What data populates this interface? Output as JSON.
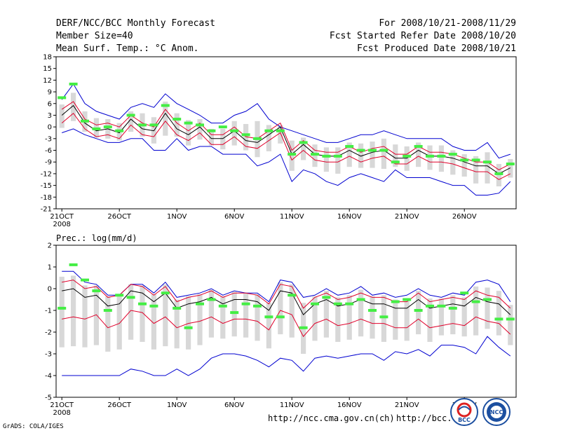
{
  "header": {
    "title": "DERF/NCC/BCC Monthly Forecast",
    "member": "Member Size=40",
    "variable": "Mean Surf. Temp.: °C Anom.",
    "period": "For 2008/10/21-2008/11/29",
    "started": "Fcst Started Refer Date 2008/10/20",
    "produced": "Fcst Produced Date 2008/10/21"
  },
  "footer": {
    "grads": "GrADS: COLA/IGES",
    "url1": "http://ncc.cma.gov.cn(ch)",
    "url2": "http://bcc.c",
    "logo_bcc": "BCC",
    "logo_ncc": "NCC"
  },
  "colors": {
    "ensemble_box": "#d8d8d8",
    "mean": "#000000",
    "spread": "#e0002a",
    "envelope": "#0000d0",
    "observed": "#44ee44"
  },
  "chart_data": [
    {
      "type": "box+line",
      "title": "Mean Surf. Temp.: °C Anom.",
      "x_days": 40,
      "xticks": [
        "21OCT",
        "26OCT",
        "1NOV",
        "6NOV",
        "11NOV",
        "16NOV",
        "21NOV",
        "26NOV"
      ],
      "xtick_days": [
        1,
        6,
        11,
        16,
        21,
        26,
        31,
        36
      ],
      "x_year": "2008",
      "ylim": [
        -21,
        18
      ],
      "yticks": [
        18,
        15,
        12,
        9,
        6,
        3,
        0,
        -3,
        -6,
        -9,
        -12,
        -15,
        -18,
        -21
      ],
      "series": [
        {
          "name": "max",
          "values": [
            -1.5,
            -0.5,
            -2,
            -3,
            -4,
            -4,
            -3,
            -3,
            -6,
            -6,
            -3,
            -6,
            -5,
            -5,
            -7,
            -7,
            -7,
            -10,
            -9,
            -7,
            -14,
            -11,
            -12,
            -14,
            -15,
            -13,
            -12,
            -13,
            -14,
            -11,
            -13,
            -13,
            -13,
            -14,
            -15,
            -15,
            -17.5,
            -17.5,
            -17,
            -14
          ]
        },
        {
          "name": "max_upper",
          "values": [
            7,
            11,
            6,
            4,
            3,
            2,
            5,
            6,
            5,
            8.5,
            6,
            4.5,
            3,
            1,
            1,
            3,
            4,
            6,
            2,
            0,
            -1,
            -2,
            -3,
            -4,
            -4,
            -3,
            -2,
            -2,
            -1,
            -2,
            -3,
            -3,
            -3,
            -3,
            -5,
            -6,
            -6,
            -4,
            -8,
            -7
          ]
        },
        {
          "name": "ensemble_mean",
          "values": [
            3,
            5.5,
            1,
            -1,
            -0.5,
            -1.5,
            2,
            -0.5,
            -1,
            3.5,
            -0.5,
            -2,
            0,
            -3,
            -3,
            -1,
            -3.5,
            -4,
            -2,
            0,
            -7,
            -4.5,
            -7,
            -7.5,
            -7.5,
            -6,
            -7.5,
            -6.5,
            -6,
            -8,
            -8,
            -6,
            -7.5,
            -7.5,
            -8,
            -9,
            -10,
            -10,
            -12,
            -10.5
          ]
        },
        {
          "name": "spread_upper",
          "values": [
            4.5,
            6.5,
            2,
            0.5,
            1,
            0,
            3,
            1,
            0,
            4.5,
            1,
            -1,
            1,
            -2,
            -2,
            0,
            -2.5,
            -3,
            -1,
            1,
            -6,
            -3.5,
            -6,
            -6.5,
            -6.5,
            -5,
            -6.5,
            -5.5,
            -5,
            -7,
            -7,
            -5,
            -6.5,
            -6.5,
            -7,
            -8,
            -9,
            -9,
            -11,
            -9.5
          ]
        },
        {
          "name": "spread_lower",
          "values": [
            1,
            3.5,
            -0.5,
            -2.5,
            -2,
            -3,
            0.5,
            -2,
            -2.5,
            1.5,
            -2,
            -3.5,
            -1.5,
            -4.5,
            -4.5,
            -2.5,
            -5,
            -5.5,
            -3.5,
            -1.5,
            -8.5,
            -6,
            -8.5,
            -9,
            -9,
            -7.5,
            -9,
            -8,
            -7.5,
            -9.5,
            -9.5,
            -7.5,
            -9,
            -9,
            -9.5,
            -10.5,
            -11.5,
            -11.5,
            -13.5,
            -12
          ]
        },
        {
          "name": "observed",
          "values": [
            7.5,
            11,
            1.5,
            -0.5,
            0,
            -1,
            3,
            0.5,
            0.5,
            5.5,
            2,
            1,
            0.5,
            -1,
            0,
            -1,
            -2,
            -3,
            -1,
            -1,
            -7,
            -4,
            -7,
            -7.5,
            -7.5,
            -5,
            -6,
            -6,
            -6,
            -9,
            -7.5,
            -5,
            -7.5,
            -7.5,
            -7,
            -8.5,
            -8.5,
            -9,
            -12,
            -9.5
          ]
        }
      ]
    },
    {
      "type": "box+line",
      "title": "Prec.: log(mm/d)",
      "x_days": 40,
      "xticks": [
        "21OCT",
        "26OCT",
        "1NOV",
        "6NOV",
        "11NOV",
        "16NOV",
        "21NOV",
        "26NOV"
      ],
      "xtick_days": [
        1,
        6,
        11,
        16,
        21,
        26,
        31,
        36
      ],
      "x_year": "2008",
      "ylim": [
        -5,
        2
      ],
      "yticks": [
        2,
        1,
        0,
        -1,
        -2,
        -3,
        -4,
        -5
      ],
      "series": [
        {
          "name": "min_envelope",
          "values": [
            -4,
            -4,
            -4,
            -4,
            -4,
            -4,
            -3.7,
            -3.8,
            -4,
            -4,
            -3.7,
            -4,
            -3.7,
            -3.2,
            -3,
            -3,
            -3.1,
            -3.3,
            -3.6,
            -3.2,
            -3.3,
            -3.8,
            -3.2,
            -3.1,
            -3.2,
            -3.1,
            -3,
            -3,
            -3.3,
            -2.9,
            -3,
            -2.8,
            -3.1,
            -2.6,
            -2.6,
            -2.7,
            -3,
            -2.2,
            -2.7,
            -3.1
          ]
        },
        {
          "name": "max_envelope",
          "values": [
            0.8,
            0.8,
            0.3,
            0.2,
            -0.3,
            -0.3,
            0.2,
            0.2,
            -0.2,
            0.3,
            -0.4,
            -0.3,
            -0.2,
            0,
            -0.3,
            -0.1,
            -0.2,
            -0.2,
            -0.6,
            0.4,
            0.3,
            -0.4,
            -0.3,
            0,
            -0.3,
            -0.2,
            0.1,
            -0.3,
            -0.2,
            -0.4,
            -0.3,
            0,
            -0.3,
            -0.4,
            -0.2,
            -0.3,
            0.3,
            0.4,
            0.2,
            -0.6
          ]
        },
        {
          "name": "ensemble_mean",
          "values": [
            -0.1,
            0,
            -0.4,
            -0.3,
            -0.8,
            -0.7,
            -0.1,
            -0.2,
            -0.6,
            -0.2,
            -0.9,
            -0.7,
            -0.6,
            -0.4,
            -0.7,
            -0.5,
            -0.5,
            -0.6,
            -1,
            -0.1,
            -0.2,
            -1.2,
            -0.7,
            -0.5,
            -0.8,
            -0.7,
            -0.5,
            -0.7,
            -0.7,
            -0.9,
            -0.9,
            -0.5,
            -0.9,
            -0.8,
            -0.7,
            -0.8,
            -0.4,
            -0.6,
            -0.7,
            -1.2
          ]
        },
        {
          "name": "spread_upper",
          "values": [
            0.3,
            0.4,
            0,
            0.1,
            -0.4,
            -0.3,
            0.2,
            0.1,
            -0.3,
            0.1,
            -0.6,
            -0.4,
            -0.3,
            -0.1,
            -0.4,
            -0.2,
            -0.2,
            -0.3,
            -0.7,
            0.2,
            0.1,
            -0.9,
            -0.4,
            -0.2,
            -0.5,
            -0.4,
            -0.2,
            -0.4,
            -0.4,
            -0.6,
            -0.6,
            -0.2,
            -0.6,
            -0.5,
            -0.4,
            -0.5,
            -0.1,
            -0.3,
            -0.4,
            -0.9
          ]
        },
        {
          "name": "spread_lower",
          "values": [
            -1.4,
            -1.3,
            -1.4,
            -1.2,
            -1.8,
            -1.6,
            -1,
            -1.1,
            -1.6,
            -1.3,
            -1.8,
            -1.6,
            -1.5,
            -1.3,
            -1.6,
            -1.4,
            -1.4,
            -1.5,
            -1.9,
            -1,
            -1.2,
            -2.2,
            -1.6,
            -1.4,
            -1.7,
            -1.6,
            -1.4,
            -1.6,
            -1.6,
            -1.8,
            -1.8,
            -1.4,
            -1.8,
            -1.7,
            -1.6,
            -1.7,
            -1.3,
            -1.5,
            -1.6,
            -2.1
          ]
        },
        {
          "name": "observed",
          "values": [
            -0.9,
            1.1,
            0.4,
            -0.1,
            -1,
            -0.3,
            -0.4,
            -0.7,
            -0.8,
            -0.2,
            -0.9,
            -1.8,
            -0.7,
            -0.5,
            -0.8,
            -1.1,
            -0.7,
            -0.8,
            -1.3,
            -1.3,
            -0.3,
            -1.8,
            -0.7,
            -0.4,
            -0.7,
            -0.7,
            -0.5,
            -1,
            -1.3,
            -0.6,
            -0.5,
            -1,
            -0.8,
            -0.8,
            -0.9,
            -0.2,
            -0.6,
            -0.5,
            -1.4,
            -1.4
          ]
        }
      ]
    }
  ]
}
